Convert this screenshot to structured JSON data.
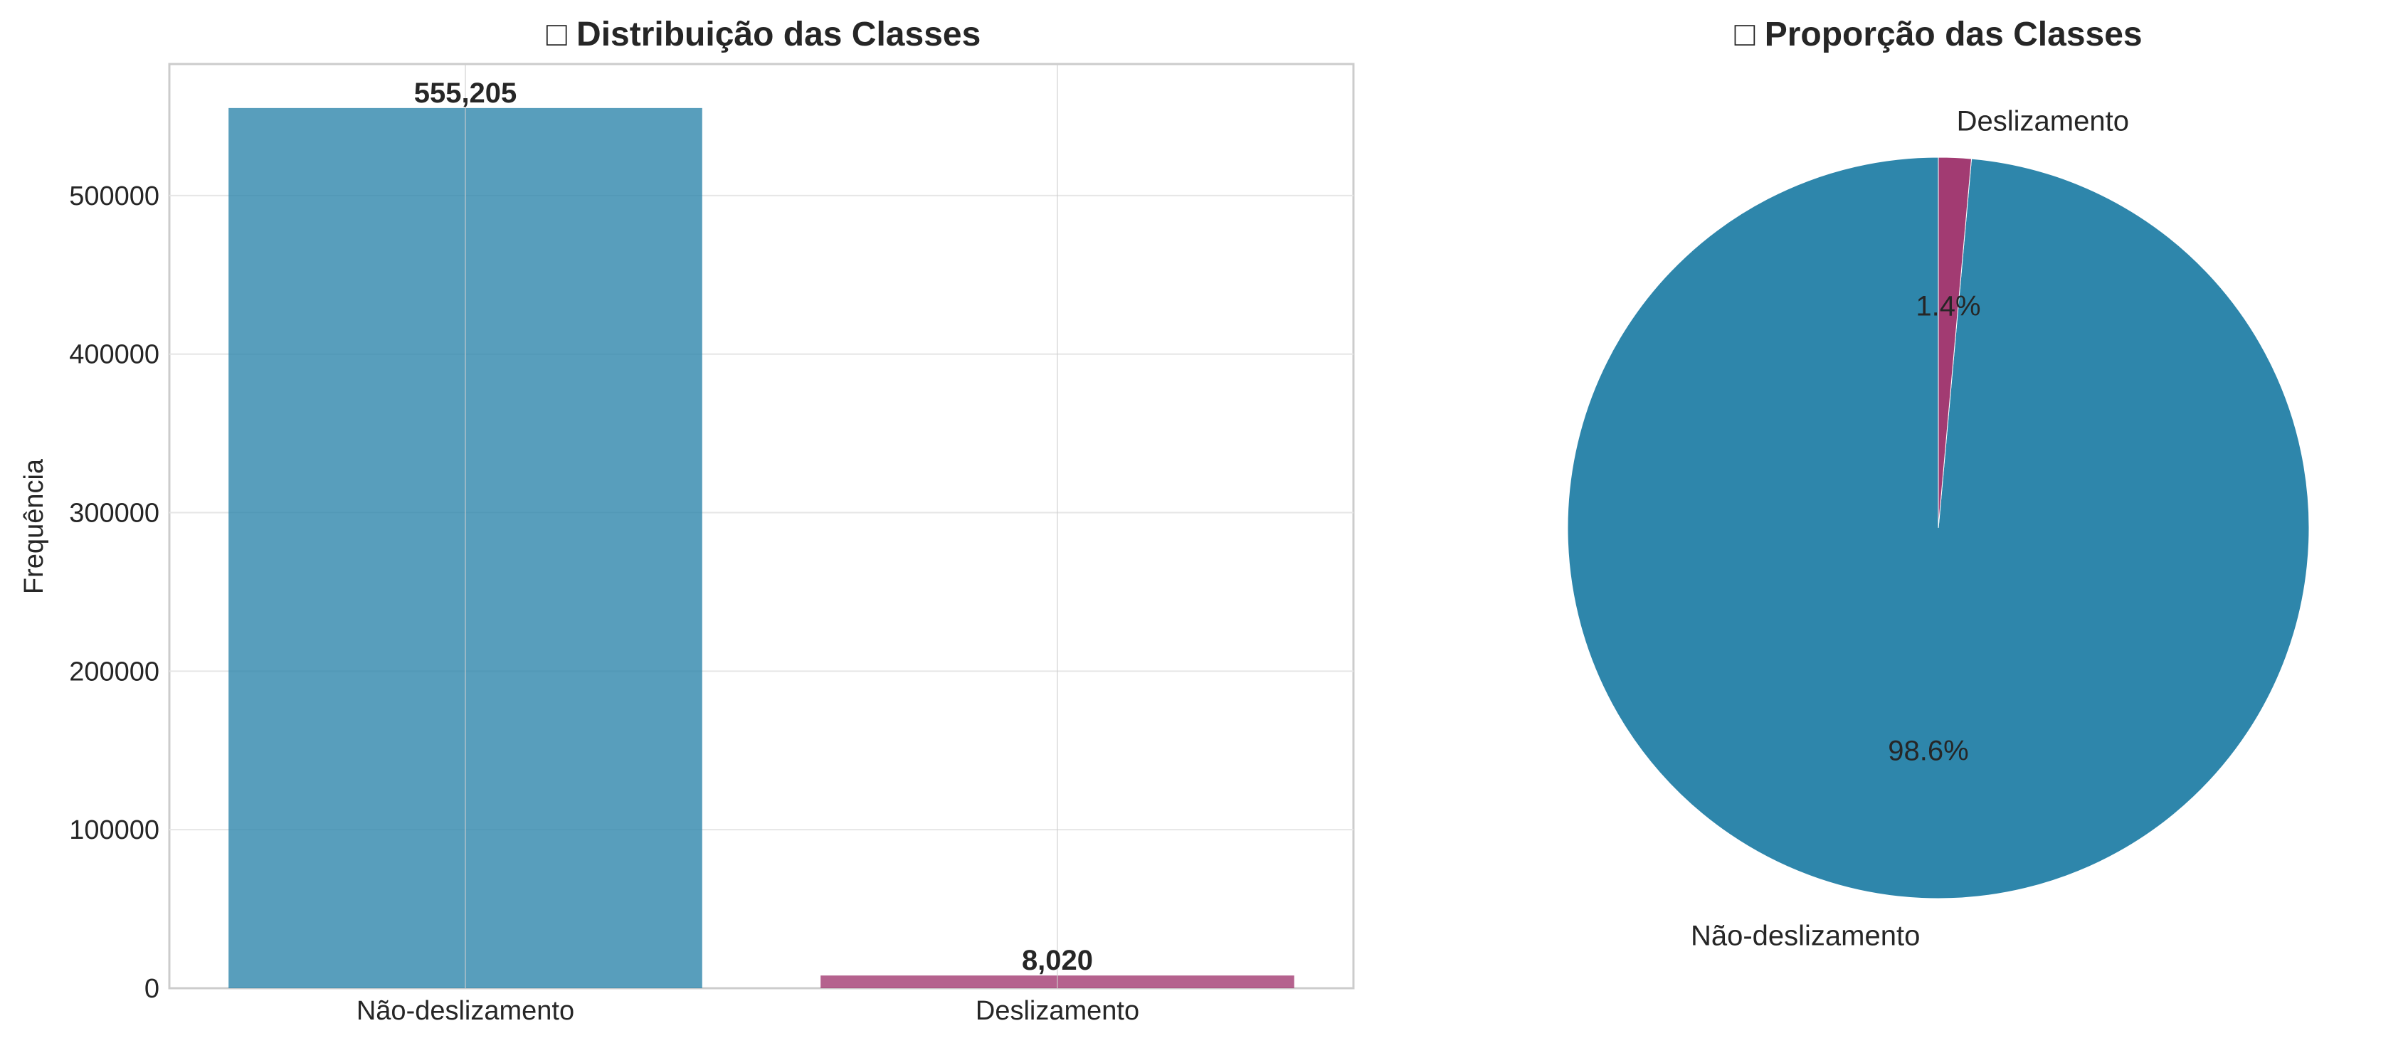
{
  "colors": {
    "class_0": "#2e86ab",
    "class_1": "#a23b72",
    "grid": "#e6e6e6",
    "frame": "#cccccc",
    "text": "#262626"
  },
  "chart_data": [
    {
      "type": "bar",
      "title": "□ Distribuição das Classes",
      "categories": [
        "Não-deslizamento",
        "Deslizamento"
      ],
      "values": [
        555205,
        8020
      ],
      "value_labels": [
        "555,205",
        "8,020"
      ],
      "xlabel": "",
      "ylabel": "Frequência",
      "ylim": [
        0,
        582965
      ],
      "yticks": [
        0,
        100000,
        200000,
        300000,
        400000,
        500000
      ],
      "ytick_labels": [
        "0",
        "100000",
        "200000",
        "300000",
        "400000",
        "500000"
      ],
      "grid": true
    },
    {
      "type": "pie",
      "title": "□ Proporção das Classes",
      "labels": [
        "Não-deslizamento",
        "Deslizamento"
      ],
      "values": [
        555205,
        8020
      ],
      "pct_labels": [
        "98.6%",
        "1.4%"
      ],
      "start_angle": 90
    }
  ]
}
